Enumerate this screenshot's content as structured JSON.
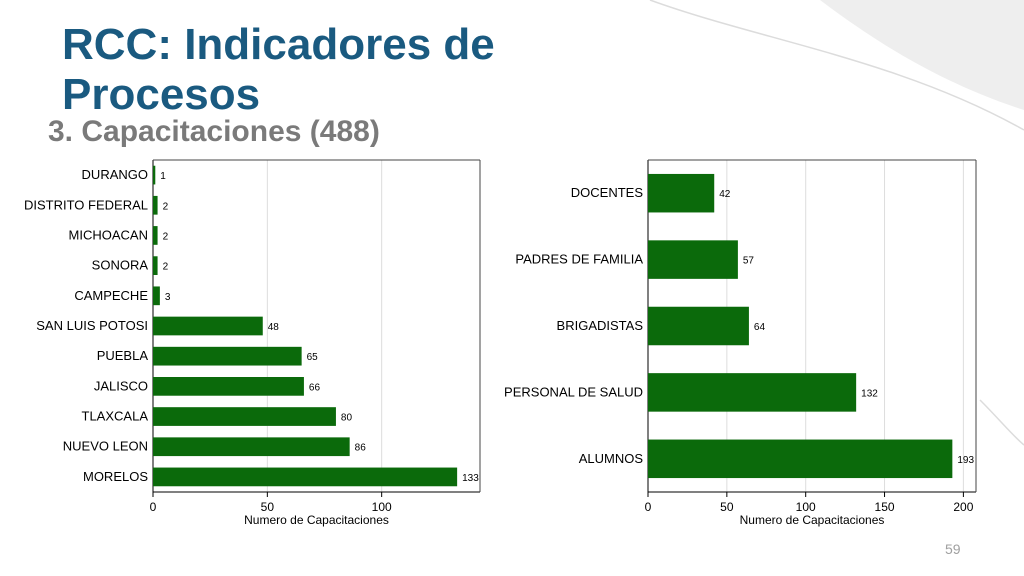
{
  "slide": {
    "title": "RCC: Indicadores de Procesos",
    "subtitle": "3. Capacitaciones (488)",
    "page_number": "59"
  },
  "colors": {
    "bar": "#0b6a0b",
    "title": "#1a5a80",
    "grid": "#dddddd"
  },
  "chart_data": [
    {
      "type": "bar",
      "orientation": "horizontal",
      "categories": [
        "DURANGO",
        "DISTRITO FEDERAL",
        "MICHOACAN",
        "SONORA",
        "CAMPECHE",
        "SAN LUIS POTOSI",
        "PUEBLA",
        "JALISCO",
        "TLAXCALA",
        "NUEVO LEON",
        "MORELOS"
      ],
      "values": [
        1,
        2,
        2,
        2,
        3,
        48,
        65,
        66,
        80,
        86,
        133
      ],
      "xlabel": "Numero de Capacitaciones",
      "xlim": [
        0,
        143
      ],
      "xticks": [
        0,
        50,
        100
      ],
      "grid": true
    },
    {
      "type": "bar",
      "orientation": "horizontal",
      "categories": [
        "DOCENTES",
        "PADRES DE FAMILIA",
        "BRIGADISTAS",
        "PERSONAL DE SALUD",
        "ALUMNOS"
      ],
      "values": [
        42,
        57,
        64,
        132,
        193
      ],
      "xlabel": "Numero de Capacitaciones",
      "xlim": [
        0,
        208
      ],
      "xticks": [
        0,
        50,
        100,
        150,
        200
      ],
      "grid": true
    }
  ]
}
